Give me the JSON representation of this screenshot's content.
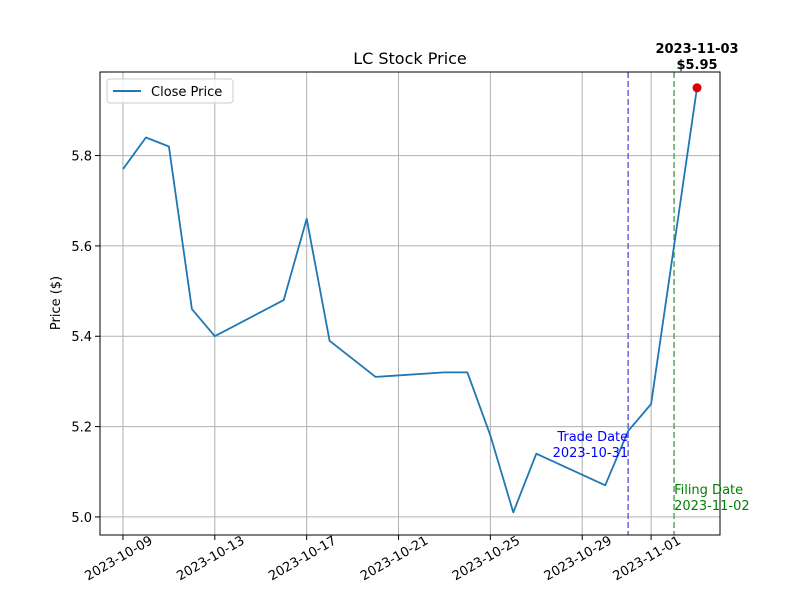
{
  "chart_data": {
    "type": "line",
    "title": "LC Stock Price",
    "xlabel": "",
    "ylabel": "Price ($)",
    "x_tick_labels": [
      "2023-10-09",
      "2023-10-13",
      "2023-10-17",
      "2023-10-21",
      "2023-10-25",
      "2023-10-29",
      "2023-11-01"
    ],
    "x_tick_dates": [
      "2023-10-09",
      "2023-10-13",
      "2023-10-17",
      "2023-10-21",
      "2023-10-25",
      "2023-10-29",
      "2023-11-01"
    ],
    "y_ticks": [
      5.0,
      5.2,
      5.4,
      5.6,
      5.8
    ],
    "y_tick_labels": [
      "5.0",
      "5.2",
      "5.4",
      "5.6",
      "5.8"
    ],
    "xlim": [
      "2023-10-08",
      "2023-11-04"
    ],
    "ylim": [
      4.96,
      5.985
    ],
    "grid": true,
    "legend_position": "upper-left",
    "series": [
      {
        "name": "Close Price",
        "color": "#1f77b4",
        "points": [
          {
            "x": "2023-10-09",
            "y": 5.77
          },
          {
            "x": "2023-10-10",
            "y": 5.84
          },
          {
            "x": "2023-10-11",
            "y": 5.82
          },
          {
            "x": "2023-10-12",
            "y": 5.46
          },
          {
            "x": "2023-10-13",
            "y": 5.4
          },
          {
            "x": "2023-10-16",
            "y": 5.48
          },
          {
            "x": "2023-10-17",
            "y": 5.66
          },
          {
            "x": "2023-10-18",
            "y": 5.39
          },
          {
            "x": "2023-10-20",
            "y": 5.31
          },
          {
            "x": "2023-10-23",
            "y": 5.32
          },
          {
            "x": "2023-10-24",
            "y": 5.32
          },
          {
            "x": "2023-10-25",
            "y": 5.18
          },
          {
            "x": "2023-10-26",
            "y": 5.01
          },
          {
            "x": "2023-10-27",
            "y": 5.14
          },
          {
            "x": "2023-10-30",
            "y": 5.07
          },
          {
            "x": "2023-10-31",
            "y": 5.19
          },
          {
            "x": "2023-11-01",
            "y": 5.25
          },
          {
            "x": "2023-11-03",
            "y": 5.95
          }
        ]
      }
    ],
    "vlines": [
      {
        "x": "2023-10-31",
        "color": "#6666dd",
        "label_line1": "Trade Date",
        "label_line2": "2023-10-31",
        "label_color": "#0000ff"
      },
      {
        "x": "2023-11-02",
        "color": "#5aa55a",
        "label_line1": "Filing Date",
        "label_line2": "2023-11-02",
        "label_color": "#008000"
      }
    ],
    "highlight": {
      "x": "2023-11-03",
      "y": 5.95,
      "color": "#dd0000",
      "label_line1": "2023-11-03",
      "label_line2": "$5.95"
    }
  }
}
